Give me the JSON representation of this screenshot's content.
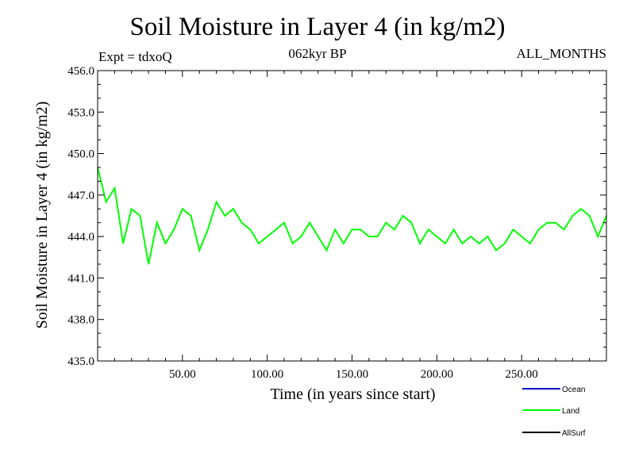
{
  "header": {
    "title": "Soil Moisture in Layer 4 (in kg/m2)",
    "expt": "Expt = tdxoQ",
    "period": "062kyr BP",
    "months": "ALL_MONTHS"
  },
  "chart_data": {
    "type": "line",
    "title": "Soil Moisture in Layer 4 (in kg/m2)",
    "xlabel": "Time (in years since start)",
    "ylabel": "Soil Moisture in Layer 4 (in kg/m2)",
    "xlim": [
      0,
      300
    ],
    "ylim": [
      435.0,
      456.0
    ],
    "xticks": [
      50,
      100,
      150,
      200,
      250
    ],
    "xtick_labels": [
      "50.00",
      "100.00",
      "150.00",
      "200.00",
      "250.00"
    ],
    "yticks": [
      435,
      438,
      441,
      444,
      447,
      450,
      453,
      456
    ],
    "ytick_labels": [
      "435.0",
      "438.0",
      "441.0",
      "444.0",
      "447.0",
      "450.0",
      "453.0",
      "456.0"
    ],
    "legend_position": "bottom-right",
    "series": [
      {
        "name": "Ocean",
        "color": "#0000cc",
        "values": []
      },
      {
        "name": "Land",
        "color": "#00ff00",
        "x": [
          0,
          5,
          10,
          15,
          20,
          25,
          30,
          35,
          40,
          45,
          50,
          55,
          60,
          65,
          70,
          75,
          80,
          85,
          90,
          95,
          100,
          105,
          110,
          115,
          120,
          125,
          130,
          135,
          140,
          145,
          150,
          155,
          160,
          165,
          170,
          175,
          180,
          185,
          190,
          195,
          200,
          205,
          210,
          215,
          220,
          225,
          230,
          235,
          240,
          245,
          250,
          255,
          260,
          265,
          270,
          275,
          280,
          285,
          290,
          295,
          300
        ],
        "values": [
          449.0,
          446.5,
          447.5,
          443.5,
          446.0,
          445.5,
          442.0,
          445.0,
          443.5,
          444.5,
          446.0,
          445.5,
          443.0,
          444.5,
          446.5,
          445.5,
          446.0,
          445.0,
          444.5,
          443.5,
          444.0,
          444.5,
          445.0,
          443.5,
          444.0,
          445.0,
          444.0,
          443.0,
          444.5,
          443.5,
          444.5,
          444.5,
          444.0,
          444.0,
          445.0,
          444.5,
          445.5,
          445.0,
          443.5,
          444.5,
          444.0,
          443.5,
          444.5,
          443.5,
          444.0,
          443.5,
          444.0,
          443.0,
          443.5,
          444.5,
          444.0,
          443.5,
          444.5,
          445.0,
          445.0,
          444.5,
          445.5,
          446.0,
          445.5,
          444.0,
          445.5
        ]
      },
      {
        "name": "AllSurf",
        "color": "#000000",
        "values": []
      }
    ]
  }
}
